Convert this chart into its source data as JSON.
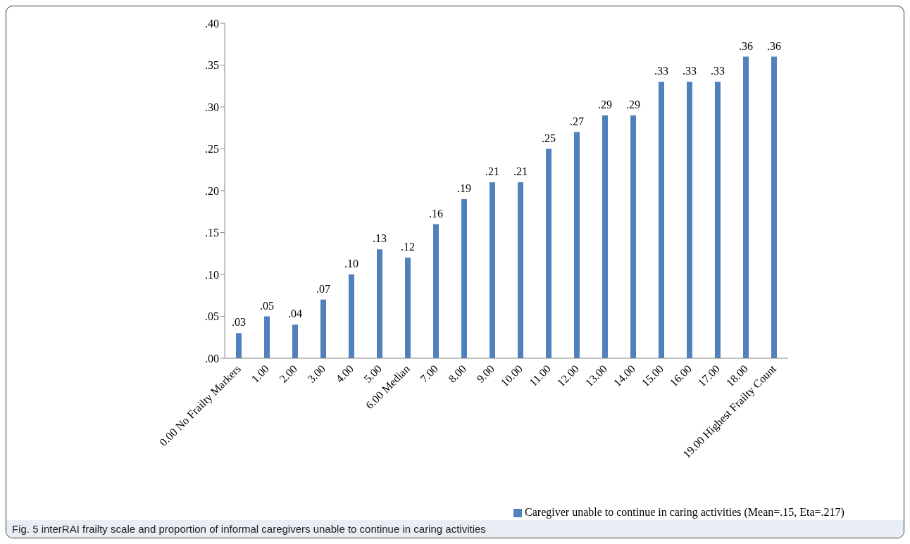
{
  "chart_data": {
    "type": "bar",
    "categories": [
      "0.00 No Frailty Markers",
      "1.00",
      "2.00",
      "3.00",
      "4.00",
      "5.00",
      "6.00  Median",
      "7.00",
      "8.00",
      "9.00",
      "10.00",
      "11.00",
      "12.00",
      "13.00",
      "14.00",
      "15.00",
      "16.00",
      "17.00",
      "18.00",
      "19.00 Highest Frailty Count"
    ],
    "series": [
      {
        "name": "Caregiver unable to continue in caring activities (Mean=.15, Eta=.217)",
        "color": "#4f81bd",
        "values": [
          0.03,
          0.05,
          0.04,
          0.07,
          0.1,
          0.13,
          0.12,
          0.16,
          0.19,
          0.21,
          0.21,
          0.25,
          0.27,
          0.29,
          0.29,
          0.33,
          0.33,
          0.33,
          0.36,
          0.36
        ],
        "value_labels": [
          ".03",
          ".05",
          ".04",
          ".07",
          ".10",
          ".13",
          ".12",
          ".16",
          ".19",
          ".21",
          ".21",
          ".25",
          ".27",
          ".29",
          ".29",
          ".33",
          ".33",
          ".33",
          ".36",
          ".36"
        ]
      }
    ],
    "ylim": [
      0,
      0.4
    ],
    "yticks": [
      {
        "value": 0,
        "label": ".00"
      },
      {
        "value": 0.05,
        "label": ".05"
      },
      {
        "value": 0.1,
        "label": ".10"
      },
      {
        "value": 0.15,
        "label": ".15"
      },
      {
        "value": 0.2,
        "label": ".20"
      },
      {
        "value": 0.25,
        "label": ".25"
      },
      {
        "value": 0.3,
        "label": ".30"
      },
      {
        "value": 0.35,
        "label": ".35"
      },
      {
        "value": 0.4,
        "label": ".40"
      }
    ],
    "grid": false,
    "legend": "bottom",
    "annotations": [
      "Fig. 5 interRAI frailty scale and proportion of informal caregivers unable to continue in caring activities"
    ]
  }
}
